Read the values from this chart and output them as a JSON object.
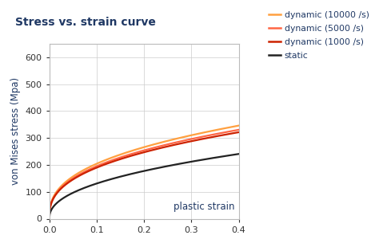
{
  "title": "Stress vs. strain curve",
  "xlabel": "plastic strain",
  "ylabel": "von Mises stress (Mpa)",
  "xlim": [
    0,
    0.4
  ],
  "ylim": [
    0,
    650
  ],
  "yticks": [
    0,
    100,
    200,
    300,
    400,
    500,
    600
  ],
  "xticks": [
    0.0,
    0.1,
    0.2,
    0.3,
    0.4
  ],
  "title_color": "#1F3864",
  "axis_label_color": "#1F3864",
  "tick_color": "#333333",
  "background_color": "#ffffff",
  "curves": [
    {
      "label": "dynamic (10000 /s)",
      "color": "#FFA040",
      "A": 0,
      "B": 490,
      "n": 0.38
    },
    {
      "label": "dynamic (5000 /s)",
      "color": "#FF6644",
      "A": 0,
      "B": 468,
      "n": 0.38
    },
    {
      "label": "dynamic (1000 /s)",
      "color": "#CC2200",
      "A": 0,
      "B": 455,
      "n": 0.38
    },
    {
      "label": "static",
      "color": "#222222",
      "A": 0,
      "B": 360,
      "n": 0.44
    }
  ],
  "figwidth": 4.74,
  "figheight": 3.05,
  "dpi": 100
}
